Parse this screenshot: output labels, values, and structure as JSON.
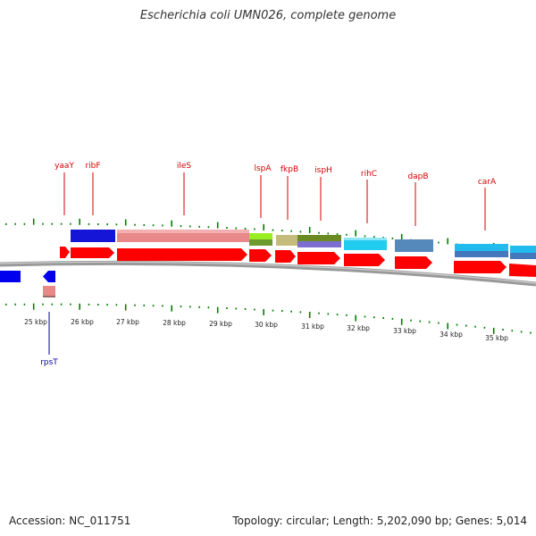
{
  "title": "Escherichia coli UMN026, complete genome",
  "footer": {
    "accession": "Accession: NC_011751",
    "summary": "Topology: circular; Length: 5,202,090 bp; Genes: 5,014"
  },
  "colors": {
    "forward_label": "#d40000",
    "reverse_label": "#0000aa",
    "cds_forward": "#ff0000",
    "cds_reverse": "#0000ee",
    "backbone": "#888888",
    "ticks": "#008000"
  },
  "scale": {
    "labels": [
      "25 kbp",
      "26 kbp",
      "27 kbp",
      "28 kbp",
      "29 kbp",
      "30 kbp",
      "31 kbp",
      "32 kbp",
      "33 kbp",
      "34 kbp",
      "35 kbp"
    ]
  },
  "genes_forward": [
    {
      "name": "yaaY"
    },
    {
      "name": "ribF"
    },
    {
      "name": "ileS"
    },
    {
      "name": "lspA"
    },
    {
      "name": "fkpB"
    },
    {
      "name": "ispH"
    },
    {
      "name": "rihC"
    },
    {
      "name": "dapB"
    },
    {
      "name": "carA"
    }
  ],
  "genes_reverse": [
    {
      "name": "rpsT"
    }
  ]
}
